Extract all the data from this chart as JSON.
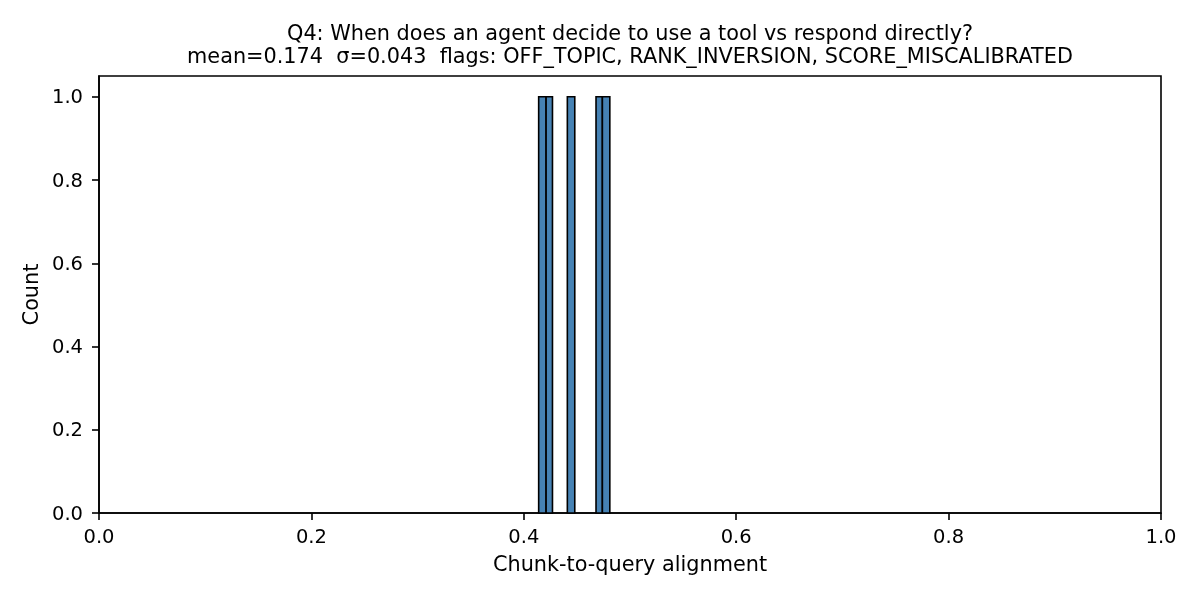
{
  "chart_data": {
    "type": "histogram",
    "title": "Q4: When does an agent decide to use a tool vs respond directly?",
    "subtitle": "mean=0.174  σ=0.043  flags: OFF_TOPIC, RANK_INVERSION, SCORE_MISCALIBRATED",
    "xlabel": "Chunk-to-query alignment",
    "ylabel": "Count",
    "bins": [
      0.414,
      0.421,
      0.427,
      0.441,
      0.448,
      0.468,
      0.474,
      0.481
    ],
    "values": [
      1,
      1,
      0,
      1,
      0,
      1,
      1
    ],
    "color": "#4682b4",
    "xlim": [
      0,
      1
    ],
    "xticks": [
      {
        "value": 0,
        "label": "0.0"
      },
      0.2,
      0.4,
      0.6,
      0.8,
      {
        "value": 1,
        "label": "1.0"
      }
    ],
    "ylim": [
      0,
      1.05
    ],
    "yticks": [
      {
        "value": 0,
        "label": "0.0"
      },
      0.2,
      0.4,
      0.6,
      0.8,
      {
        "value": 1,
        "label": "1.0"
      }
    ],
    "grid": false
  }
}
